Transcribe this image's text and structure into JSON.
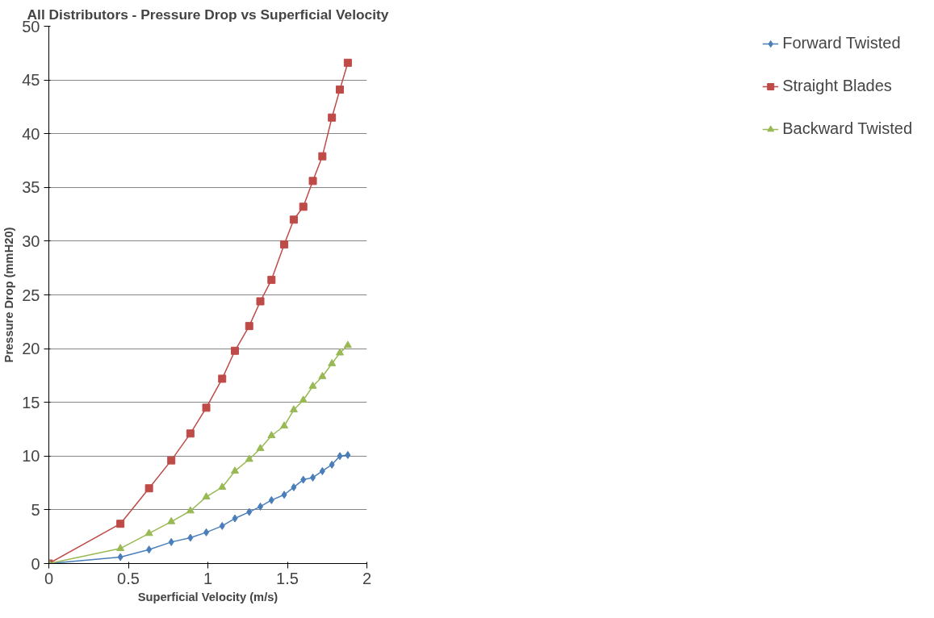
{
  "chart_data": {
    "type": "line",
    "title": "All Distributors - Pressure Drop vs Superficial Velocity",
    "xlabel": "Superficial Velocity (m/s)",
    "ylabel": "Pressure Drop (mmH20)",
    "x": [
      0,
      0.45,
      0.63,
      0.77,
      0.89,
      0.99,
      1.09,
      1.17,
      1.26,
      1.33,
      1.4,
      1.48,
      1.54,
      1.6,
      1.66,
      1.72,
      1.78,
      1.83,
      1.88
    ],
    "series": [
      {
        "name": "Forward Twisted",
        "color": "#4a7ebb",
        "marker": "diamond",
        "values": [
          0,
          0.6,
          1.3,
          2.0,
          2.4,
          2.9,
          3.5,
          4.2,
          4.8,
          5.3,
          5.9,
          6.4,
          7.1,
          7.8,
          8.0,
          8.6,
          9.2,
          10.0,
          10.1
        ]
      },
      {
        "name": "Straight Blades",
        "color": "#be4b48",
        "marker": "square",
        "values": [
          0,
          3.7,
          7.0,
          9.6,
          12.1,
          14.5,
          17.2,
          19.8,
          22.1,
          24.4,
          26.4,
          29.7,
          32.0,
          33.2,
          35.6,
          37.9,
          41.5,
          44.1,
          46.6
        ]
      },
      {
        "name": "Backward Twisted",
        "color": "#98b954",
        "marker": "triangle",
        "values": [
          0,
          1.4,
          2.8,
          3.9,
          4.9,
          6.2,
          7.1,
          8.6,
          9.7,
          10.7,
          11.9,
          12.8,
          14.3,
          15.2,
          16.5,
          17.4,
          18.6,
          19.6,
          20.3
        ]
      }
    ],
    "xlim": [
      0,
      2
    ],
    "xticks": [
      0,
      0.5,
      1,
      1.5,
      2
    ],
    "ylim": [
      0,
      50
    ],
    "yticks": [
      0,
      5,
      10,
      15,
      20,
      25,
      30,
      35,
      40,
      45,
      50
    ],
    "grid": "y",
    "legend": "right",
    "line_style": "solid"
  }
}
